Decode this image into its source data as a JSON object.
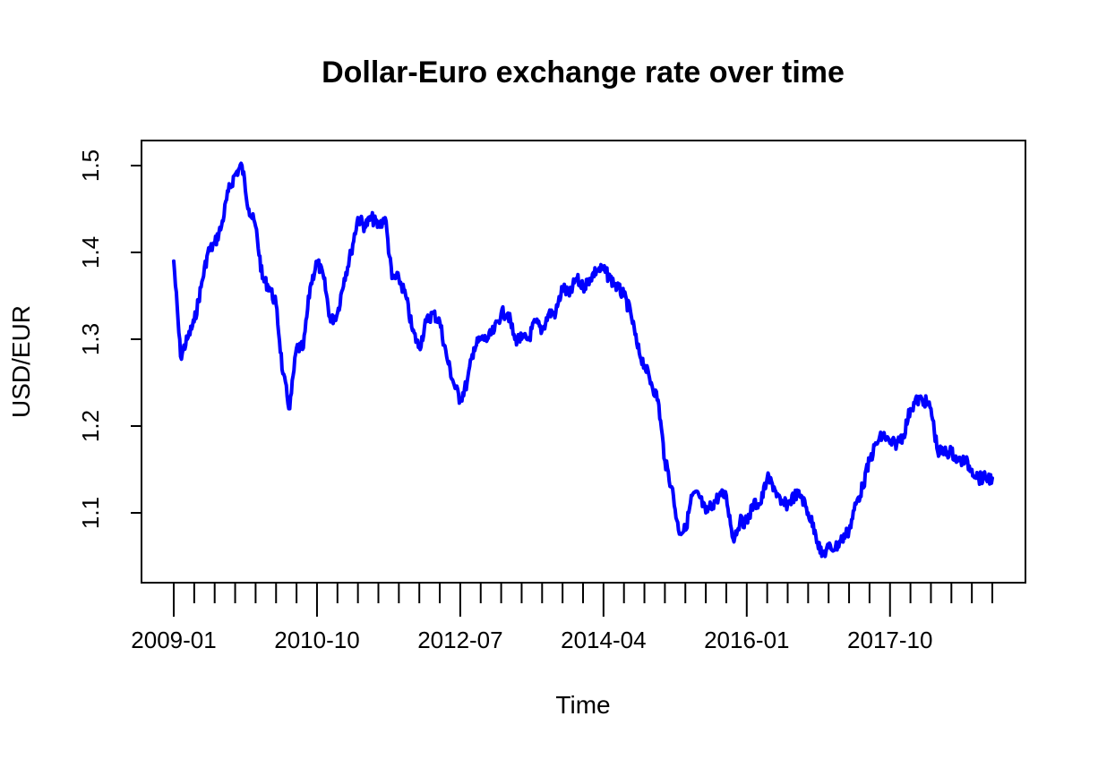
{
  "chart_data": {
    "type": "line",
    "title": "Dollar-Euro exchange rate over time",
    "xlabel": "Time",
    "ylabel": "USD/EUR",
    "x_tick_labels": [
      "2009-01",
      "2010-10",
      "2012-07",
      "2014-04",
      "2016-01",
      "2017-10"
    ],
    "y_tick_labels": [
      "1.1",
      "1.2",
      "1.3",
      "1.4",
      "1.5"
    ],
    "xlim": [
      "2009-01",
      "2019-01"
    ],
    "ylim": [
      1.02,
      1.53
    ],
    "grid": false,
    "series_color": "#0000ff",
    "series": [
      {
        "x": [
          "2009-01",
          "2009-02",
          "2009-03",
          "2009-04",
          "2009-05",
          "2009-06",
          "2009-07",
          "2009-08",
          "2009-09",
          "2009-10",
          "2009-11",
          "2009-12",
          "2010-01",
          "2010-02",
          "2010-03",
          "2010-04",
          "2010-05",
          "2010-06",
          "2010-07",
          "2010-08",
          "2010-09",
          "2010-10",
          "2010-11",
          "2010-12",
          "2011-01",
          "2011-02",
          "2011-03",
          "2011-04",
          "2011-05",
          "2011-06",
          "2011-07",
          "2011-08",
          "2011-09",
          "2011-10",
          "2011-11",
          "2011-12",
          "2012-01",
          "2012-02",
          "2012-03",
          "2012-04",
          "2012-05",
          "2012-06",
          "2012-07",
          "2012-08",
          "2012-09",
          "2012-10",
          "2012-11",
          "2012-12",
          "2013-01",
          "2013-02",
          "2013-03",
          "2013-04",
          "2013-05",
          "2013-06",
          "2013-07",
          "2013-08",
          "2013-09",
          "2013-10",
          "2013-11",
          "2013-12",
          "2014-01",
          "2014-02",
          "2014-03",
          "2014-04",
          "2014-05",
          "2014-06",
          "2014-07",
          "2014-08",
          "2014-09",
          "2014-10",
          "2014-11",
          "2014-12",
          "2015-01",
          "2015-02",
          "2015-03",
          "2015-04",
          "2015-05",
          "2015-06",
          "2015-07",
          "2015-08",
          "2015-09",
          "2015-10",
          "2015-11",
          "2015-12",
          "2016-01",
          "2016-02",
          "2016-03",
          "2016-04",
          "2016-05",
          "2016-06",
          "2016-07",
          "2016-08",
          "2016-09",
          "2016-10",
          "2016-11",
          "2016-12",
          "2017-01",
          "2017-02",
          "2017-03",
          "2017-04",
          "2017-05",
          "2017-06",
          "2017-07",
          "2017-08",
          "2017-09",
          "2017-10",
          "2017-11",
          "2017-12",
          "2018-01",
          "2018-02",
          "2018-03",
          "2018-04",
          "2018-05",
          "2018-06",
          "2018-07",
          "2018-08",
          "2018-09",
          "2018-10",
          "2018-11",
          "2018-12",
          "2019-01"
        ],
        "values": [
          1.39,
          1.28,
          1.3,
          1.32,
          1.36,
          1.4,
          1.41,
          1.43,
          1.47,
          1.49,
          1.5,
          1.45,
          1.43,
          1.37,
          1.36,
          1.34,
          1.26,
          1.22,
          1.29,
          1.29,
          1.36,
          1.39,
          1.37,
          1.32,
          1.33,
          1.37,
          1.4,
          1.44,
          1.43,
          1.44,
          1.43,
          1.44,
          1.37,
          1.37,
          1.35,
          1.31,
          1.29,
          1.32,
          1.33,
          1.32,
          1.28,
          1.25,
          1.23,
          1.25,
          1.29,
          1.3,
          1.3,
          1.31,
          1.33,
          1.33,
          1.3,
          1.3,
          1.3,
          1.32,
          1.31,
          1.33,
          1.33,
          1.36,
          1.35,
          1.37,
          1.36,
          1.37,
          1.38,
          1.38,
          1.37,
          1.36,
          1.35,
          1.33,
          1.29,
          1.27,
          1.25,
          1.23,
          1.16,
          1.13,
          1.08,
          1.08,
          1.12,
          1.12,
          1.1,
          1.11,
          1.12,
          1.12,
          1.07,
          1.09,
          1.09,
          1.11,
          1.11,
          1.14,
          1.13,
          1.11,
          1.11,
          1.12,
          1.12,
          1.1,
          1.08,
          1.05,
          1.06,
          1.06,
          1.07,
          1.08,
          1.11,
          1.13,
          1.16,
          1.18,
          1.19,
          1.18,
          1.18,
          1.19,
          1.22,
          1.23,
          1.23,
          1.22,
          1.17,
          1.17,
          1.17,
          1.16,
          1.16,
          1.15,
          1.14,
          1.14,
          1.14
        ]
      }
    ]
  }
}
